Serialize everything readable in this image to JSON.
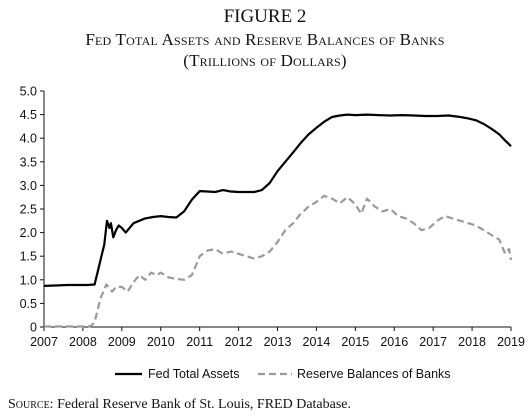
{
  "figure_label": "FIGURE 2",
  "title_line1": "Fed Total Assets and Reserve Balances of Banks",
  "title_line2": "(Trillions of Dollars)",
  "source_lead": "Source:",
  "source_text": " Federal Reserve Bank of St. Louis, FRED Database.",
  "chart_data": {
    "type": "line",
    "title": "Fed Total Assets and Reserve Balances of Banks",
    "subtitle": "(Trillions of Dollars)",
    "xlabel": "",
    "ylabel": "",
    "xlim": [
      2007,
      2019
    ],
    "ylim": [
      0,
      5.0
    ],
    "x_ticks": [
      "2007",
      "2008",
      "2009",
      "2010",
      "2011",
      "2012",
      "2013",
      "2014",
      "2015",
      "2016",
      "2017",
      "2018",
      "2019"
    ],
    "y_ticks": [
      "0",
      "0.5",
      "1.0",
      "1.5",
      "2.0",
      "2.5",
      "3.0",
      "3.5",
      "4.0",
      "4.5",
      "5.0"
    ],
    "grid": false,
    "legend_position": "bottom",
    "series": [
      {
        "name": "Fed Total Assets",
        "style": "solid",
        "color": "#000000",
        "x": [
          2007.0,
          2007.3,
          2007.6,
          2007.9,
          2008.1,
          2008.3,
          2008.55,
          2008.62,
          2008.68,
          2008.72,
          2008.78,
          2008.85,
          2008.92,
          2009.0,
          2009.1,
          2009.2,
          2009.3,
          2009.45,
          2009.6,
          2009.8,
          2010.0,
          2010.2,
          2010.4,
          2010.6,
          2010.8,
          2011.0,
          2011.2,
          2011.4,
          2011.6,
          2011.8,
          2012.0,
          2012.2,
          2012.4,
          2012.6,
          2012.8,
          2013.0,
          2013.2,
          2013.4,
          2013.6,
          2013.8,
          2014.0,
          2014.2,
          2014.4,
          2014.6,
          2014.8,
          2015.0,
          2015.3,
          2015.6,
          2015.9,
          2016.2,
          2016.5,
          2016.8,
          2017.1,
          2017.4,
          2017.7,
          2017.9,
          2018.1,
          2018.3,
          2018.5,
          2018.7,
          2018.85,
          2019.0
        ],
        "values": [
          0.87,
          0.88,
          0.89,
          0.89,
          0.89,
          0.9,
          1.75,
          2.25,
          2.1,
          2.2,
          1.9,
          2.05,
          2.15,
          2.1,
          2.0,
          2.1,
          2.2,
          2.25,
          2.3,
          2.33,
          2.35,
          2.33,
          2.32,
          2.45,
          2.7,
          2.88,
          2.87,
          2.86,
          2.9,
          2.87,
          2.86,
          2.86,
          2.86,
          2.9,
          3.05,
          3.3,
          3.5,
          3.7,
          3.9,
          4.08,
          4.22,
          4.35,
          4.45,
          4.48,
          4.5,
          4.49,
          4.5,
          4.49,
          4.48,
          4.49,
          4.48,
          4.47,
          4.47,
          4.48,
          4.45,
          4.42,
          4.38,
          4.3,
          4.2,
          4.08,
          3.95,
          3.83
        ]
      },
      {
        "name": "Reserve Balances of Banks",
        "style": "dashed",
        "color": "#9a9a9a",
        "x": [
          2007.0,
          2007.5,
          2008.0,
          2008.2,
          2008.3,
          2008.45,
          2008.6,
          2008.75,
          2008.85,
          2009.0,
          2009.15,
          2009.3,
          2009.45,
          2009.6,
          2009.75,
          2009.9,
          2010.0,
          2010.2,
          2010.4,
          2010.6,
          2010.8,
          2011.0,
          2011.2,
          2011.4,
          2011.6,
          2011.8,
          2012.0,
          2012.2,
          2012.4,
          2012.6,
          2012.8,
          2013.0,
          2013.2,
          2013.4,
          2013.6,
          2013.8,
          2014.0,
          2014.2,
          2014.4,
          2014.6,
          2014.8,
          2015.0,
          2015.15,
          2015.3,
          2015.5,
          2015.7,
          2015.9,
          2016.1,
          2016.3,
          2016.5,
          2016.7,
          2016.9,
          2017.1,
          2017.3,
          2017.5,
          2017.7,
          2017.9,
          2018.1,
          2018.3,
          2018.5,
          2018.7,
          2018.85,
          2018.95,
          2019.0
        ],
        "values": [
          0.01,
          0.01,
          0.01,
          0.02,
          0.1,
          0.6,
          0.9,
          0.75,
          0.85,
          0.85,
          0.75,
          0.95,
          1.1,
          1.0,
          1.15,
          1.1,
          1.15,
          1.05,
          1.02,
          1.0,
          1.1,
          1.5,
          1.62,
          1.65,
          1.55,
          1.6,
          1.55,
          1.5,
          1.45,
          1.5,
          1.6,
          1.8,
          2.05,
          2.2,
          2.4,
          2.55,
          2.65,
          2.78,
          2.72,
          2.62,
          2.75,
          2.6,
          2.4,
          2.72,
          2.55,
          2.45,
          2.5,
          2.35,
          2.3,
          2.2,
          2.05,
          2.1,
          2.25,
          2.35,
          2.3,
          2.25,
          2.2,
          2.15,
          2.05,
          1.95,
          1.85,
          1.55,
          1.65,
          1.42
        ]
      }
    ]
  }
}
